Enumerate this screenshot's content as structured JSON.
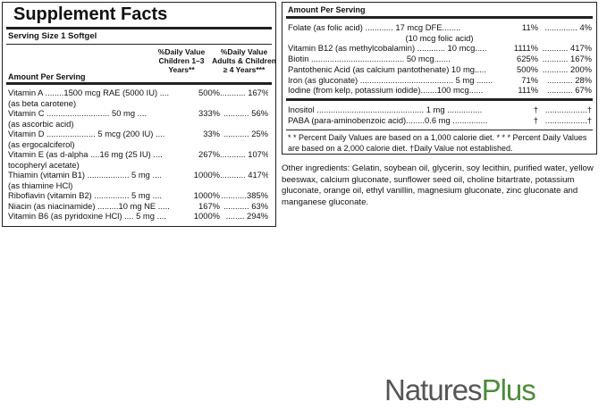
{
  "left_panel": {
    "title": "Supplement Facts",
    "serving_size": "Serving Size 1 Softgel",
    "header": {
      "amount": "Amount Per Serving",
      "children": "%Daily Value Children 1–3 Years**",
      "adults": "%Daily Value Adults & Children ≥ 4 Years***"
    },
    "rows": [
      {
        "name": "Vitamin A ........1500 mcg RAE (5000 IU) ....",
        "children": "500%",
        "adults": "........... 167%",
        "sub": "(as beta carotene)"
      },
      {
        "name": "Vitamin C ........................... 50 mg ....",
        "children": "333%",
        "adults": "........... 56%",
        "sub": "(as ascorbic acid)"
      },
      {
        "name": "Vitamin D ..................... 5 mcg (200 IU) ....",
        "children": "33%",
        "adults": "........... 25%",
        "sub": "(as ergocalciferol)"
      },
      {
        "name": "Vitamin E (as d-alpha ....16 mg (25 IU) ....",
        "children": "267%",
        "adults": "........... 107%",
        "sub": "tocopheryl acetate)"
      },
      {
        "name": "Thiamin (vitamin B1) .................. 5 mg ....",
        "children": "1000%",
        "adults": "........... 417%",
        "sub": "(as thiamine HCl)"
      },
      {
        "name": "Riboflavin (vitamin B2) ............... 5 mg ....",
        "children": "1000%",
        "adults": "...........385%"
      },
      {
        "name": "Niacin (as niacinamide) .........10 mg NE .....",
        "children": "167%",
        "adults": "........... 63%"
      },
      {
        "name": "Vitamin B6 (as pyridoxine HCl) .... 5 mg ....",
        "children": "1000%",
        "adults": "........ 294%"
      }
    ]
  },
  "right_panel": {
    "header": "Amount Per Serving",
    "rows": [
      {
        "name": "Folate (as folic acid) ............ 17 mcg DFE........",
        "children": "11%",
        "adults": ".............. 4%",
        "sub": "(10 mcg folic acid)"
      },
      {
        "name": "Vitamin B12 (as methylcobalamin) ............ 10 mcg.....",
        "children": "1111%",
        "adults": "........... 417%"
      },
      {
        "name": "Biotin ........................................ 50 mcg.......",
        "children": "625%",
        "adults": "........... 167%"
      },
      {
        "name": "Pantothenic Acid (as calcium pantothenate) 10 mg.....",
        "children": "500%",
        "adults": "........... 200%"
      },
      {
        "name": "Iron (as gluconate) ........................................ 5 mg .......",
        "children": "71%",
        "adults": "........... 28%"
      },
      {
        "name": "Iodine (from kelp, potassium iodide).......100 mcg......",
        "children": "111%",
        "adults": "........... 67%"
      }
    ],
    "rows2": [
      {
        "name": "Inositol .............................................. 1 mg ...............",
        "children": "†",
        "adults": "..................†"
      },
      {
        "name": "PABA (para-aminobenzoic acid)........0.6 mg ...............",
        "children": "†",
        "adults": "..................†"
      }
    ],
    "footnote": "* * Percent Daily Values are based on a 1,000 calorie diet. * * * Percent Daily Values are based on a 2,000 calorie diet. †Daily Value not established."
  },
  "other_ingredients": "Other ingredients: Gelatin, soybean oil, glycerin, soy lecithin, purified water, yellow beeswax, calcium gluconate, sunflower seed oil, choline bitartrate, potassium gluconate, orange oil, ethyl vanillin, magnesium gluconate, zinc gluconate and manganese gluconate.",
  "logo": {
    "part1": "Natures",
    "part2": "Plus"
  }
}
